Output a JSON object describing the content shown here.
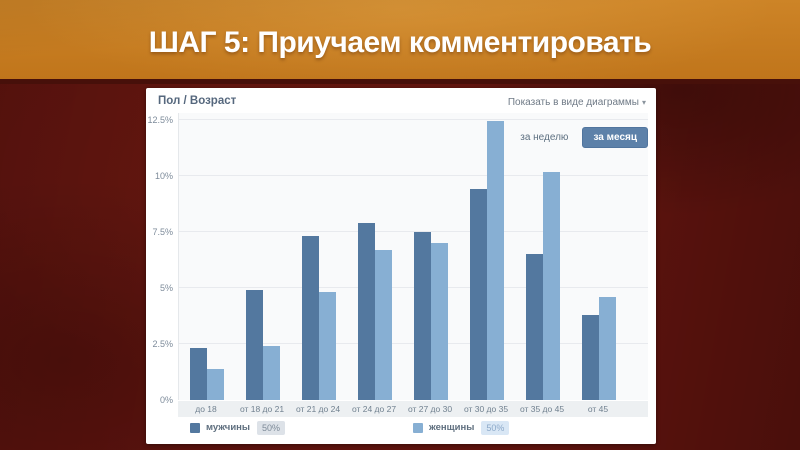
{
  "slide": {
    "title": "ШАГ 5: Приучаем комментировать"
  },
  "widget": {
    "header": {
      "title": "Пол / Возраст",
      "view_as": "Показать в виде диаграммы",
      "chevron": "▾"
    },
    "period": {
      "week": "за неделю",
      "month": "за месяц",
      "active": "month"
    },
    "legend": [
      {
        "label": "мужчины",
        "value": "50%",
        "color": "#53789f"
      },
      {
        "label": "женщины",
        "value": "50%",
        "color": "#87afd3"
      }
    ]
  },
  "chart_data": {
    "type": "bar",
    "title": "Пол / Возраст",
    "categories": [
      "до 18",
      "от 18 до 21",
      "от 21 до 24",
      "от 24 до 27",
      "от 27 до 30",
      "от 30 до 35",
      "от 35 до 45",
      "от 45"
    ],
    "series": [
      {
        "name": "мужчины",
        "color": "#53789f",
        "values": [
          2.3,
          4.9,
          7.3,
          7.9,
          7.5,
          9.4,
          6.5,
          3.8
        ]
      },
      {
        "name": "женщины",
        "color": "#87afd3",
        "values": [
          1.4,
          2.4,
          4.8,
          6.7,
          7.0,
          12.45,
          10.2,
          4.6
        ]
      }
    ],
    "yticks": [
      {
        "label": "0%",
        "value": 0
      },
      {
        "label": "2.5%",
        "value": 2.5
      },
      {
        "label": "5%",
        "value": 5
      },
      {
        "label": "7.5%",
        "value": 7.5
      },
      {
        "label": "10%",
        "value": 10
      },
      {
        "label": "12.5%",
        "value": 12.5
      }
    ],
    "ylim": [
      0,
      12.5
    ],
    "grid": true,
    "legend_position": "bottom"
  },
  "colors": {
    "slide_background": "#5c120e",
    "title_band": "#c87e20",
    "card_background": "#ffffff",
    "plot_background": "#f9fafb",
    "gridline": "#e8eaee",
    "button_active": "#5d81a9",
    "men_bar": "#53789f",
    "women_bar": "#87afd3"
  }
}
